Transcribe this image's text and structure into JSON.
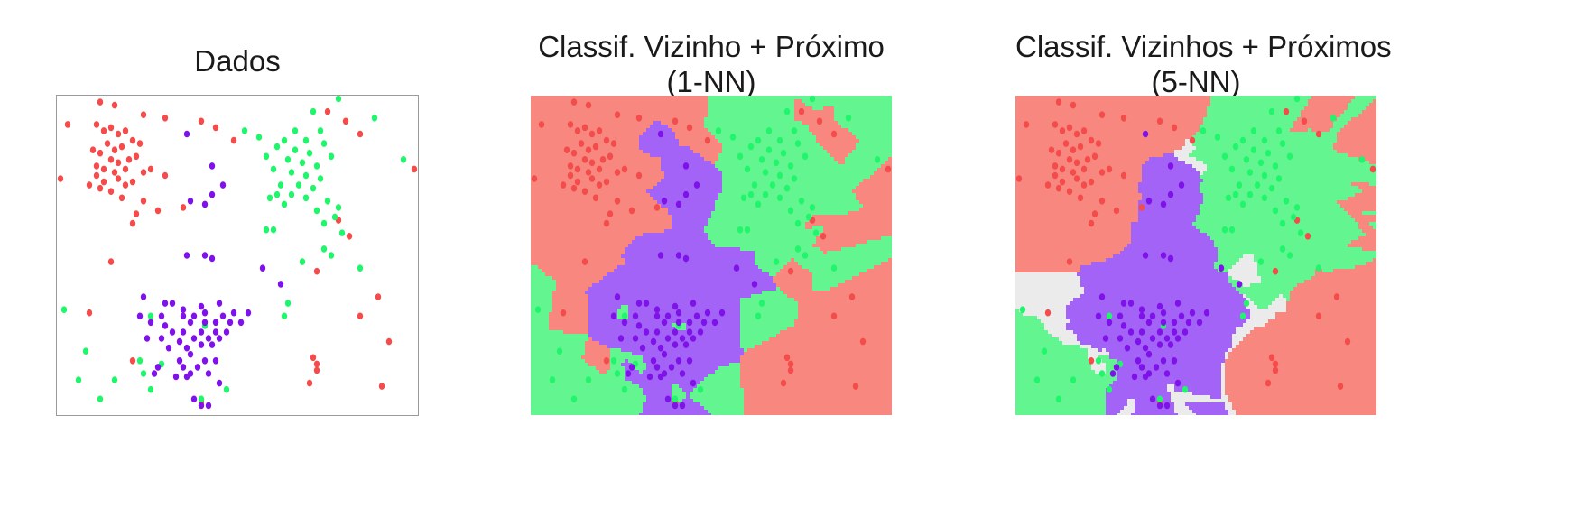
{
  "colors": {
    "red": "#f44b4b",
    "green": "#21f56c",
    "purple": "#7f12e8",
    "region_red": "#f7877f",
    "region_green": "#63f58f",
    "region_purple": "#a363f6",
    "region_undecided": "#ecebec"
  },
  "panels": [
    {
      "title_lines": [
        "Dados"
      ]
    },
    {
      "title_lines": [
        "Classif. Vizinho + Próximo",
        "(1-NN)"
      ]
    },
    {
      "title_lines": [
        "Classif. Vizinhos + Próximos",
        "(5-NN)"
      ]
    }
  ],
  "chart_data": [
    {
      "type": "scatter",
      "title": "Dados",
      "xlabel": "",
      "ylabel": "",
      "xlim": [
        0,
        100
      ],
      "ylim": [
        0,
        100
      ],
      "grid": false,
      "legend": "none",
      "series": [
        {
          "color": "red",
          "points": [
            [
              12,
              98
            ],
            [
              16,
              97
            ],
            [
              24,
              94
            ],
            [
              3,
              91
            ],
            [
              11,
              91
            ],
            [
              13,
              89
            ],
            [
              15,
              90
            ],
            [
              17,
              88
            ],
            [
              19,
              89
            ],
            [
              30,
              93
            ],
            [
              21,
              86
            ],
            [
              23,
              85
            ],
            [
              14,
              85
            ],
            [
              16,
              83
            ],
            [
              18,
              84
            ],
            [
              10,
              83
            ],
            [
              12,
              82
            ],
            [
              15,
              80
            ],
            [
              17,
              79
            ],
            [
              20,
              80
            ],
            [
              22,
              81
            ],
            [
              11,
              78
            ],
            [
              13,
              77
            ],
            [
              16,
              76
            ],
            [
              19,
              77
            ],
            [
              24,
              76
            ],
            [
              11,
              75
            ],
            [
              13,
              73
            ],
            [
              17,
              74
            ],
            [
              19,
              72
            ],
            [
              21,
              73
            ],
            [
              12,
              71
            ],
            [
              9,
              72
            ],
            [
              15,
              70
            ],
            [
              18,
              68
            ],
            [
              26,
              77
            ],
            [
              30,
              75
            ],
            [
              24,
              67
            ],
            [
              28,
              64
            ],
            [
              22,
              63
            ],
            [
              35,
              65
            ],
            [
              40,
              92
            ],
            [
              44,
              90
            ],
            [
              49,
              86
            ],
            [
              75,
              95
            ],
            [
              80,
              92
            ],
            [
              84,
              88
            ],
            [
              1,
              74
            ],
            [
              99,
              77
            ],
            [
              21,
              60
            ],
            [
              78,
              61
            ],
            [
              81,
              56
            ],
            [
              72,
              45
            ],
            [
              15,
              48
            ],
            [
              89,
              37
            ],
            [
              84,
              31
            ],
            [
              9,
              32
            ],
            [
              92,
              23
            ],
            [
              71,
              18
            ],
            [
              72,
              16
            ],
            [
              72,
              14
            ],
            [
              21,
              17
            ],
            [
              90,
              9
            ],
            [
              70,
              10
            ],
            [
              40,
              4
            ]
          ]
        },
        {
          "color": "green",
          "points": [
            [
              78,
              99
            ],
            [
              71,
              95
            ],
            [
              88,
              93
            ],
            [
              52,
              89
            ],
            [
              66,
              89
            ],
            [
              73,
              89
            ],
            [
              56,
              87
            ],
            [
              63,
              86
            ],
            [
              69,
              86
            ],
            [
              74,
              85
            ],
            [
              61,
              84
            ],
            [
              66,
              83
            ],
            [
              70,
              82
            ],
            [
              76,
              81
            ],
            [
              58,
              81
            ],
            [
              64,
              80
            ],
            [
              68,
              79
            ],
            [
              72,
              78
            ],
            [
              96,
              80
            ],
            [
              60,
              77
            ],
            [
              65,
              76
            ],
            [
              69,
              75
            ],
            [
              73,
              74
            ],
            [
              62,
              72
            ],
            [
              67,
              72
            ],
            [
              71,
              71
            ],
            [
              61,
              69
            ],
            [
              65,
              69
            ],
            [
              69,
              68
            ],
            [
              75,
              67
            ],
            [
              59,
              68
            ],
            [
              63,
              66
            ],
            [
              78,
              65
            ],
            [
              72,
              64
            ],
            [
              77,
              62
            ],
            [
              74,
              60
            ],
            [
              58,
              58
            ],
            [
              60,
              58
            ],
            [
              79,
              57
            ],
            [
              74,
              52
            ],
            [
              76,
              50
            ],
            [
              84,
              46
            ],
            [
              68,
              48
            ],
            [
              64,
              35
            ],
            [
              63,
              31
            ],
            [
              2,
              33
            ],
            [
              26,
              31
            ],
            [
              41,
              28
            ],
            [
              8,
              20
            ],
            [
              23,
              17
            ],
            [
              29,
              16
            ],
            [
              6,
              11
            ],
            [
              16,
              11
            ],
            [
              24,
              13
            ],
            [
              47,
              8
            ],
            [
              26,
              8
            ],
            [
              12,
              5
            ],
            [
              40,
              5
            ]
          ]
        },
        {
          "color": "purple",
          "points": [
            [
              36,
              88
            ],
            [
              43,
              78
            ],
            [
              37,
              67
            ],
            [
              41,
              66
            ],
            [
              43,
              69
            ],
            [
              46,
              72
            ],
            [
              43,
              49
            ],
            [
              41,
              50
            ],
            [
              36,
              50
            ],
            [
              57,
              46
            ],
            [
              62,
              41
            ],
            [
              24,
              37
            ],
            [
              30,
              35
            ],
            [
              32,
              35
            ],
            [
              35,
              33
            ],
            [
              40,
              34
            ],
            [
              45,
              35
            ],
            [
              23,
              31
            ],
            [
              29,
              31
            ],
            [
              35,
              31
            ],
            [
              38,
              31
            ],
            [
              41,
              32
            ],
            [
              46,
              31
            ],
            [
              49,
              32
            ],
            [
              53,
              32
            ],
            [
              26,
              29
            ],
            [
              30,
              28
            ],
            [
              37,
              29
            ],
            [
              41,
              29
            ],
            [
              44,
              29
            ],
            [
              48,
              29
            ],
            [
              51,
              29
            ],
            [
              32,
              26
            ],
            [
              35,
              26
            ],
            [
              40,
              26
            ],
            [
              44,
              26
            ],
            [
              47,
              26
            ],
            [
              25,
              24
            ],
            [
              29,
              24
            ],
            [
              34,
              23
            ],
            [
              38,
              24
            ],
            [
              42,
              24
            ],
            [
              45,
              24
            ],
            [
              31,
              21
            ],
            [
              36,
              21
            ],
            [
              40,
              22
            ],
            [
              43,
              22
            ],
            [
              37,
              19
            ],
            [
              34,
              17
            ],
            [
              41,
              17
            ],
            [
              44,
              17
            ],
            [
              35,
              15
            ],
            [
              39,
              15
            ],
            [
              37,
              13
            ],
            [
              42,
              13
            ],
            [
              27,
              13
            ],
            [
              28,
              15
            ],
            [
              33,
              12
            ],
            [
              36,
              12
            ],
            [
              45,
              10
            ],
            [
              38,
              5
            ],
            [
              40,
              3
            ],
            [
              42,
              3
            ]
          ]
        }
      ]
    },
    {
      "type": "scatter",
      "title": "Classif. Vizinho + Próximo (1-NN)",
      "xlabel": "",
      "ylabel": "",
      "xlim": [
        0,
        100
      ],
      "ylim": [
        0,
        100
      ],
      "grid": false,
      "legend": "none",
      "decision_regions": "1-NN (red / green / purple)"
    },
    {
      "type": "scatter",
      "title": "Classif. Vizinhos + Próximos (5-NN)",
      "xlabel": "",
      "ylabel": "",
      "xlim": [
        0,
        100
      ],
      "ylim": [
        0,
        100
      ],
      "grid": false,
      "legend": "none",
      "decision_regions": "5-NN (red / green / purple / undecided)"
    }
  ]
}
